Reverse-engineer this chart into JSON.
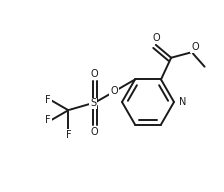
{
  "bg_color": "#ffffff",
  "line_color": "#1a1a1a",
  "line_width": 1.4,
  "font_size": 7.0,
  "fig_width": 2.24,
  "fig_height": 1.92,
  "dpi": 100,
  "xlim": [
    0,
    2.24
  ],
  "ylim": [
    0,
    1.92
  ]
}
